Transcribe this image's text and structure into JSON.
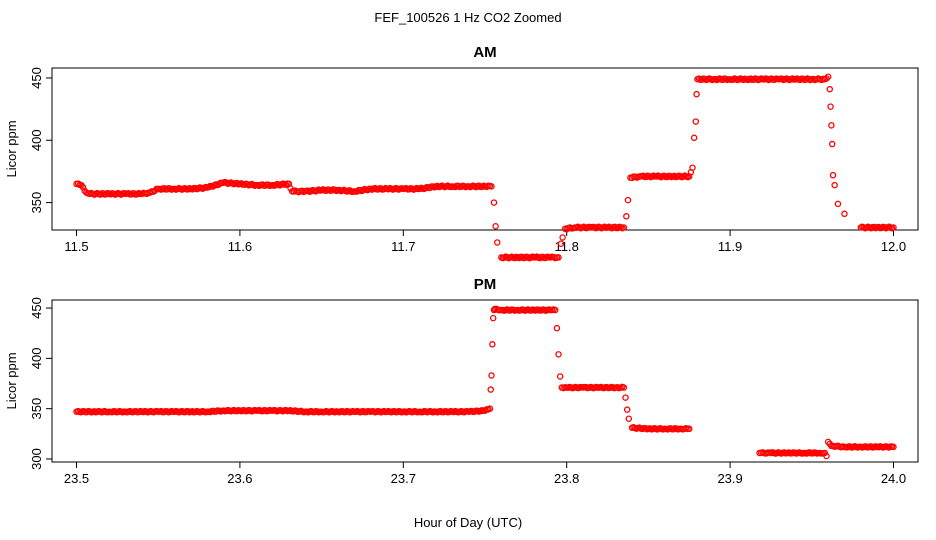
{
  "figure_title": "FEF_100526  1 Hz CO2 Zoomed",
  "shared_xlabel": "Hour of Day (UTC)",
  "chart_data": [
    {
      "type": "scatter",
      "title": "AM",
      "ylabel": "Licor ppm",
      "xlim": [
        11.485,
        12.015
      ],
      "ylim": [
        328,
        458
      ],
      "xticks": [
        11.5,
        11.6,
        11.7,
        11.8,
        11.9,
        12.0
      ],
      "xtick_labels": [
        "11.5",
        "11.6",
        "11.7",
        "11.8",
        "11.9",
        "12.0"
      ],
      "yticks": [
        350,
        400,
        450
      ],
      "ytick_labels": [
        "350",
        "400",
        "450"
      ],
      "grid": false,
      "marker_color": "#ff0000",
      "series": [
        {
          "x": [
            11.5,
            11.503,
            11.506,
            11.51,
            11.52,
            11.53,
            11.54,
            11.545,
            11.55,
            11.56,
            11.57,
            11.58,
            11.59,
            11.6,
            11.61,
            11.62,
            11.63,
            11.632,
            11.64,
            11.65,
            11.66,
            11.67,
            11.68,
            11.69,
            11.7,
            11.71,
            11.72,
            11.73,
            11.74,
            11.75,
            11.754,
            11.7555,
            11.7565,
            11.7575,
            11.76,
            11.77,
            11.78,
            11.79,
            11.795,
            11.7965,
            11.7975,
            11.799,
            11.805,
            11.815,
            11.825,
            11.835,
            11.8365,
            11.8375,
            11.839,
            11.845,
            11.855,
            11.865,
            11.875,
            11.877,
            11.878,
            11.879,
            11.8795,
            11.88,
            11.89,
            11.9,
            11.91,
            11.92,
            11.93,
            11.94,
            11.95,
            11.958,
            11.96,
            11.961,
            11.9615,
            11.962,
            11.9625,
            11.963,
            11.964,
            11.966,
            11.97,
            11.98,
            11.99,
            12.0
          ],
          "y": [
            365,
            364,
            358,
            357,
            357,
            357,
            357,
            358,
            361,
            361,
            361,
            362,
            366,
            365,
            364,
            364,
            365,
            359,
            359,
            360,
            360,
            359,
            361,
            361,
            361,
            361,
            363,
            363,
            363,
            363,
            363,
            350,
            331,
            318,
            306,
            306,
            306,
            306,
            306,
            317,
            322,
            329,
            330,
            330,
            330,
            330,
            339,
            352,
            370,
            371,
            371,
            371,
            371,
            378,
            402,
            415,
            437,
            449,
            449,
            449,
            449,
            449,
            449,
            449,
            449,
            449,
            451,
            441,
            427,
            412,
            397,
            372,
            364,
            349,
            341,
            330,
            330,
            330
          ]
        }
      ]
    },
    {
      "type": "scatter",
      "title": "PM",
      "ylabel": "Licor ppm",
      "xlim": [
        23.485,
        24.015
      ],
      "ylim": [
        297,
        458
      ],
      "xticks": [
        23.5,
        23.6,
        23.7,
        23.8,
        23.9,
        24.0
      ],
      "xtick_labels": [
        "23.5",
        "23.6",
        "23.7",
        "23.8",
        "23.9",
        "24.0"
      ],
      "yticks": [
        300,
        350,
        400,
        450
      ],
      "ytick_labels": [
        "300",
        "350",
        "400",
        "450"
      ],
      "grid": false,
      "marker_color": "#ff0000",
      "series": [
        {
          "x": [
            23.5,
            23.51,
            23.52,
            23.53,
            23.54,
            23.55,
            23.56,
            23.57,
            23.58,
            23.59,
            23.6,
            23.61,
            23.62,
            23.63,
            23.64,
            23.65,
            23.66,
            23.67,
            23.68,
            23.69,
            23.7,
            23.71,
            23.72,
            23.73,
            23.74,
            23.75,
            23.753,
            23.7535,
            23.754,
            23.7545,
            23.755,
            23.7555,
            23.756,
            23.76,
            23.77,
            23.78,
            23.79,
            23.793,
            23.794,
            23.795,
            23.796,
            23.797,
            23.8,
            23.81,
            23.82,
            23.83,
            23.835,
            23.836,
            23.837,
            23.838,
            23.84,
            23.85,
            23.86,
            23.87,
            23.875,
            23.918,
            23.925,
            23.935,
            23.945,
            23.955,
            23.958,
            23.959,
            23.96,
            23.961,
            23.962,
            23.97,
            23.98,
            23.99,
            24.0
          ],
          "y": [
            347,
            347,
            347,
            347,
            347,
            347,
            347,
            347,
            347,
            348,
            348,
            348,
            348,
            348,
            347,
            347,
            347,
            347,
            347,
            347,
            347,
            347,
            347,
            347,
            347,
            348,
            350,
            369,
            383,
            414,
            440,
            448,
            449,
            448,
            448,
            448,
            448,
            448,
            430,
            404,
            382,
            371,
            371,
            371,
            371,
            371,
            371,
            361,
            349,
            340,
            331,
            330,
            330,
            330,
            330,
            306,
            306,
            306,
            306,
            306,
            306,
            303,
            317,
            315,
            313,
            312,
            312,
            312,
            312
          ]
        }
      ]
    }
  ]
}
